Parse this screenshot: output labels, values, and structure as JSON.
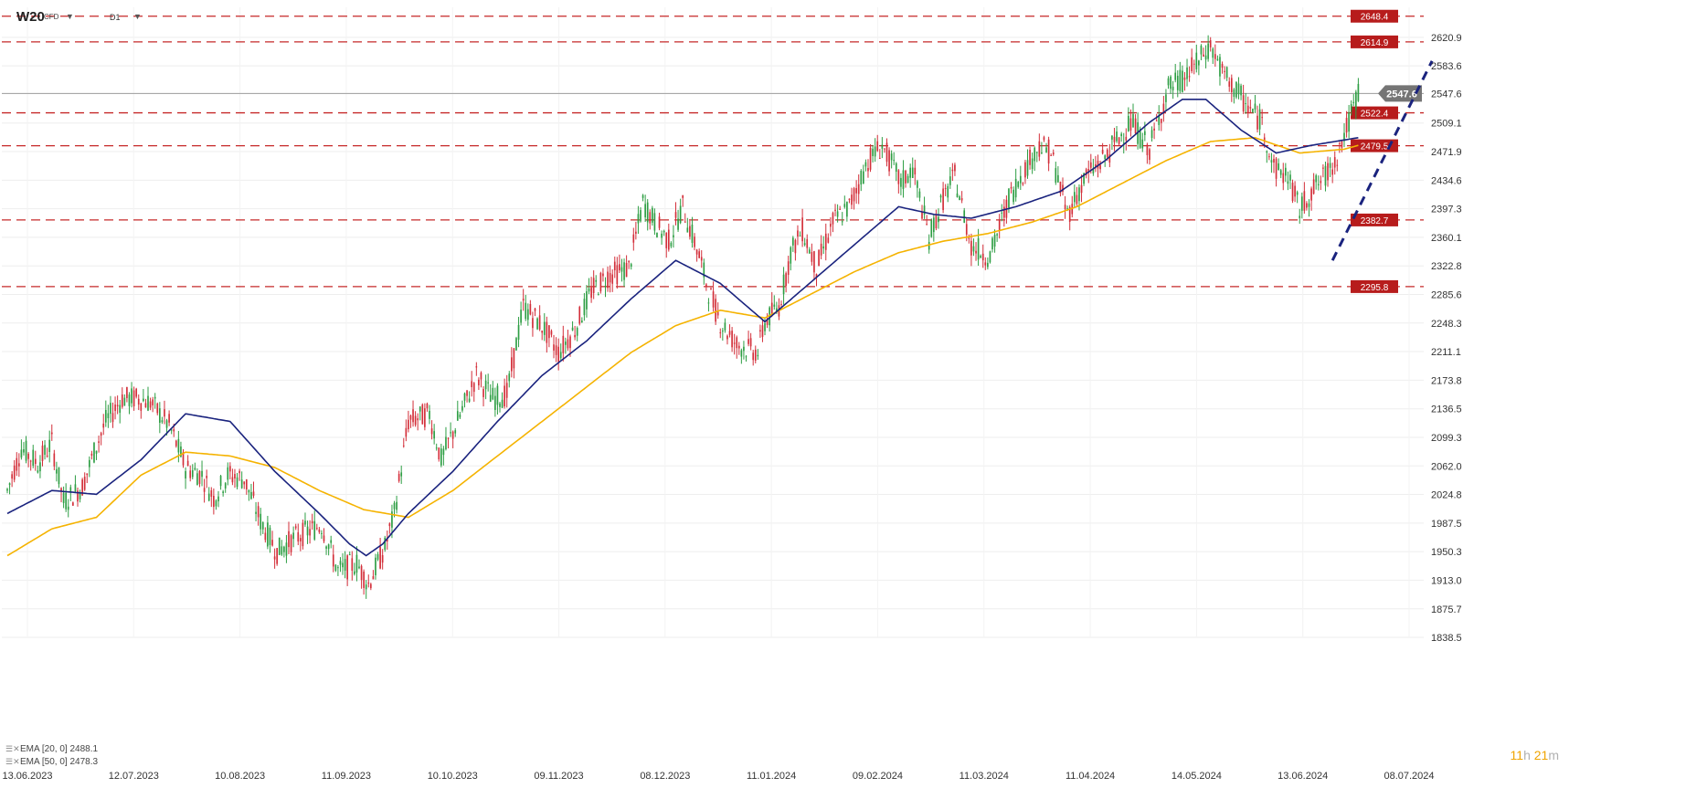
{
  "header": {
    "symbol": "W20",
    "instrument_type": "CFD",
    "timeframe": "D1",
    "symbol_menu_icon": "caret-down-icon",
    "timeframe_menu_icon": "caret-down-icon"
  },
  "countdown": {
    "hours": "11",
    "hours_unit": "h",
    "minutes": "21",
    "minutes_unit": "m"
  },
  "indicators": [
    {
      "label": "EMA [20, 0] 2488.1",
      "color": "#1a237e"
    },
    {
      "label": "EMA [50, 0] 2478.3",
      "color": "#f5b301"
    }
  ],
  "colors": {
    "bull": "#2e9e44",
    "bear": "#d32f3a",
    "level_line": "#c62828",
    "trend_line": "#1a237e",
    "price_line": "#9e9e9e"
  },
  "chart_data": {
    "type": "candlestick",
    "ylim": [
      1838.5,
      2660
    ],
    "y_ticks": [
      "2620.9",
      "2583.6",
      "2547.6",
      "2509.1",
      "2471.9",
      "2434.6",
      "2397.3",
      "2360.1",
      "2322.8",
      "2285.6",
      "2248.3",
      "2211.1",
      "2173.8",
      "2136.5",
      "2099.3",
      "2062.0",
      "2024.8",
      "1987.5",
      "1950.3",
      "1913.0",
      "1875.7",
      "1838.5"
    ],
    "x_labels": [
      "13.06.2023",
      "12.07.2023",
      "10.08.2023",
      "11.09.2023",
      "10.10.2023",
      "09.11.2023",
      "08.12.2023",
      "11.01.2024",
      "09.02.2024",
      "11.03.2024",
      "11.04.2024",
      "14.05.2024",
      "13.06.2024",
      "08.07.2024"
    ],
    "last_price": 2547.6,
    "levels": [
      2648.4,
      2614.9,
      2522.4,
      2479.5,
      2382.7,
      2295.8
    ],
    "level_labels": [
      "2648.4",
      "2614.9",
      "2522.4",
      "2479.5",
      "2382.7",
      "2295.8"
    ],
    "last_price_label": "2547.6",
    "trendline": {
      "from": [
        "12.06.2024",
        2330
      ],
      "to": [
        "08.07.2024",
        2590
      ]
    },
    "close_path": [
      [
        0,
        2030
      ],
      [
        6,
        2085
      ],
      [
        13,
        2065
      ],
      [
        19,
        2092
      ],
      [
        24,
        2015
      ],
      [
        32,
        2035
      ],
      [
        37,
        2080
      ],
      [
        42,
        2120
      ],
      [
        49,
        2150
      ],
      [
        56,
        2150
      ],
      [
        61,
        2145
      ],
      [
        69,
        2115
      ],
      [
        76,
        2060
      ],
      [
        83,
        2050
      ],
      [
        88,
        2020
      ],
      [
        94,
        2050
      ],
      [
        101,
        2045
      ],
      [
        108,
        1990
      ],
      [
        115,
        1950
      ],
      [
        121,
        1965
      ],
      [
        127,
        1975
      ],
      [
        134,
        1985
      ],
      [
        141,
        1925
      ],
      [
        149,
        1935
      ],
      [
        154,
        1908
      ],
      [
        161,
        1955
      ],
      [
        165,
        2000
      ],
      [
        171,
        2120
      ],
      [
        180,
        2130
      ],
      [
        185,
        2070
      ],
      [
        194,
        2135
      ],
      [
        200,
        2180
      ],
      [
        207,
        2150
      ],
      [
        213,
        2155
      ],
      [
        220,
        2270
      ],
      [
        228,
        2245
      ],
      [
        235,
        2210
      ],
      [
        242,
        2240
      ],
      [
        249,
        2290
      ],
      [
        256,
        2310
      ],
      [
        265,
        2320
      ],
      [
        271,
        2405
      ],
      [
        276,
        2380
      ],
      [
        282,
        2355
      ],
      [
        288,
        2400
      ],
      [
        295,
        2335
      ],
      [
        299,
        2290
      ],
      [
        304,
        2250
      ],
      [
        311,
        2220
      ],
      [
        320,
        2210
      ],
      [
        323,
        2250
      ],
      [
        329,
        2270
      ],
      [
        334,
        2340
      ],
      [
        339,
        2370
      ],
      [
        345,
        2320
      ],
      [
        352,
        2380
      ],
      [
        359,
        2400
      ],
      [
        367,
        2460
      ],
      [
        373,
        2480
      ],
      [
        381,
        2430
      ],
      [
        386,
        2450
      ],
      [
        393,
        2360
      ],
      [
        399,
        2410
      ],
      [
        404,
        2440
      ],
      [
        411,
        2350
      ],
      [
        415,
        2342
      ],
      [
        419,
        2335
      ],
      [
        427,
        2410
      ],
      [
        432,
        2440
      ],
      [
        440,
        2480
      ],
      [
        445,
        2470
      ],
      [
        452,
        2390
      ],
      [
        460,
        2440
      ],
      [
        467,
        2460
      ],
      [
        474,
        2490
      ],
      [
        479,
        2510
      ],
      [
        487,
        2475
      ],
      [
        495,
        2555
      ],
      [
        501,
        2565
      ],
      [
        508,
        2590
      ],
      [
        513,
        2610
      ],
      [
        518,
        2575
      ],
      [
        523,
        2555
      ],
      [
        529,
        2530
      ],
      [
        535,
        2510
      ],
      [
        540,
        2450
      ],
      [
        546,
        2440
      ],
      [
        551,
        2395
      ],
      [
        556,
        2420
      ],
      [
        562,
        2440
      ],
      [
        566,
        2460
      ],
      [
        573,
        2520
      ],
      [
        576,
        2550
      ]
    ],
    "ema20": [
      [
        0,
        2000
      ],
      [
        19,
        2030
      ],
      [
        38,
        2025
      ],
      [
        57,
        2070
      ],
      [
        76,
        2130
      ],
      [
        95,
        2120
      ],
      [
        114,
        2055
      ],
      [
        133,
        2000
      ],
      [
        146,
        1960
      ],
      [
        153,
        1945
      ],
      [
        160,
        1960
      ],
      [
        171,
        2000
      ],
      [
        190,
        2055
      ],
      [
        209,
        2120
      ],
      [
        228,
        2180
      ],
      [
        247,
        2225
      ],
      [
        266,
        2280
      ],
      [
        285,
        2330
      ],
      [
        304,
        2300
      ],
      [
        323,
        2250
      ],
      [
        342,
        2300
      ],
      [
        361,
        2350
      ],
      [
        380,
        2400
      ],
      [
        395,
        2390
      ],
      [
        411,
        2385
      ],
      [
        430,
        2400
      ],
      [
        449,
        2420
      ],
      [
        468,
        2460
      ],
      [
        487,
        2510
      ],
      [
        501,
        2540
      ],
      [
        511,
        2540
      ],
      [
        526,
        2500
      ],
      [
        541,
        2470
      ],
      [
        556,
        2480
      ],
      [
        576,
        2490
      ]
    ],
    "ema50": [
      [
        0,
        1945
      ],
      [
        19,
        1980
      ],
      [
        38,
        1995
      ],
      [
        57,
        2050
      ],
      [
        76,
        2080
      ],
      [
        95,
        2075
      ],
      [
        114,
        2060
      ],
      [
        133,
        2030
      ],
      [
        152,
        2005
      ],
      [
        171,
        1995
      ],
      [
        190,
        2030
      ],
      [
        209,
        2075
      ],
      [
        228,
        2120
      ],
      [
        247,
        2165
      ],
      [
        266,
        2210
      ],
      [
        285,
        2245
      ],
      [
        304,
        2265
      ],
      [
        323,
        2255
      ],
      [
        342,
        2285
      ],
      [
        361,
        2315
      ],
      [
        380,
        2340
      ],
      [
        399,
        2355
      ],
      [
        418,
        2365
      ],
      [
        437,
        2380
      ],
      [
        456,
        2400
      ],
      [
        475,
        2430
      ],
      [
        494,
        2460
      ],
      [
        513,
        2485
      ],
      [
        532,
        2490
      ],
      [
        551,
        2470
      ],
      [
        570,
        2475
      ],
      [
        576,
        2480
      ]
    ]
  }
}
